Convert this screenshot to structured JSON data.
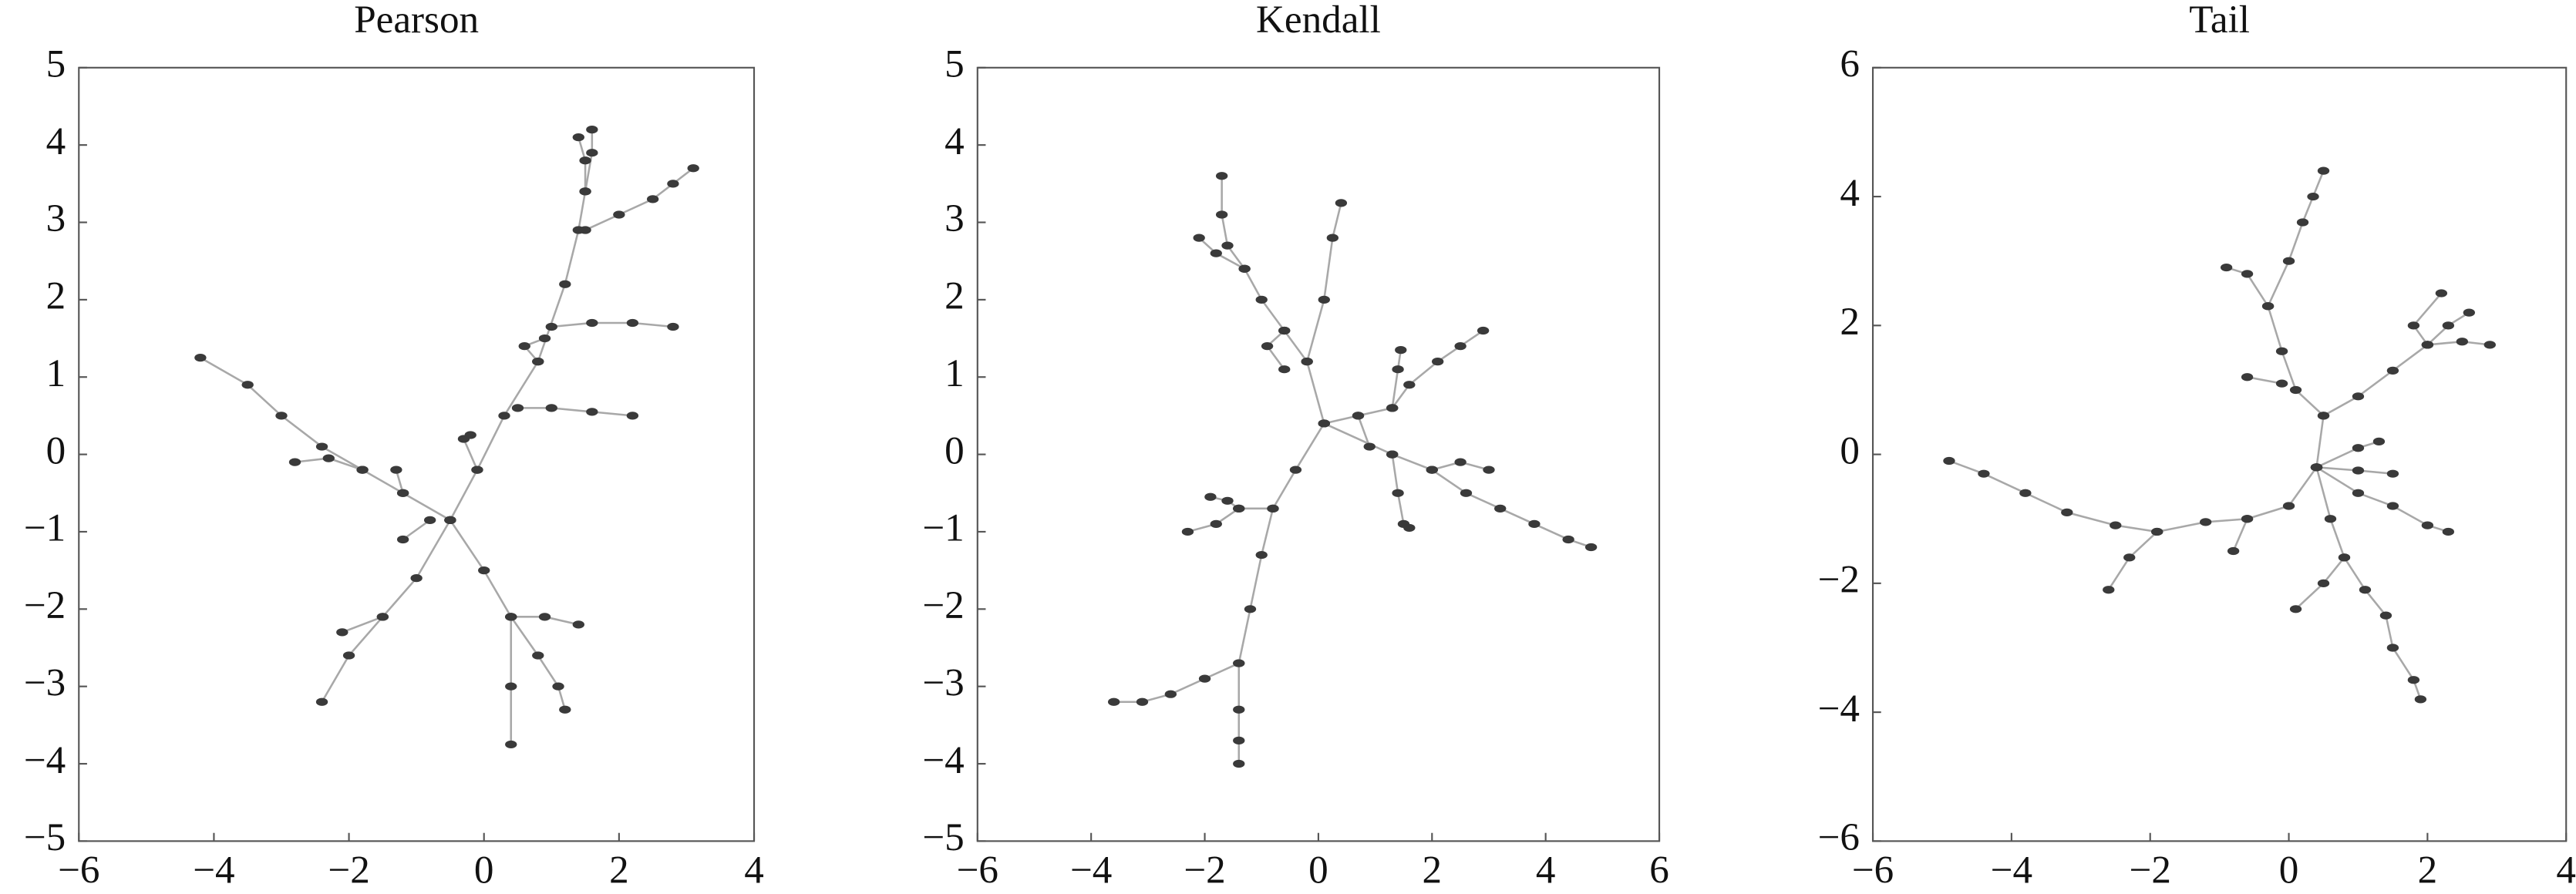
{
  "chart_data": [
    {
      "type": "tree",
      "title": "Pearson",
      "xlim": [
        -6,
        4
      ],
      "ylim": [
        -5,
        5
      ],
      "xticks": [
        {
          "value": -6,
          "label": "−6"
        },
        {
          "value": -4,
          "label": "−4"
        },
        {
          "value": -2,
          "label": "−2"
        },
        0,
        2,
        4
      ],
      "yticks": [
        {
          "value": -5,
          "label": "−5"
        },
        {
          "value": -4,
          "label": "−4"
        },
        {
          "value": -3,
          "label": "−3"
        },
        {
          "value": -2,
          "label": "−2"
        },
        {
          "value": -1,
          "label": "−1"
        },
        0,
        1,
        2,
        3,
        4,
        5
      ],
      "line_color": "#a8a8a8",
      "marker_color": "#3a3a3a",
      "series": [
        {
          "x": [
            -0.5,
            -0.1,
            0.3,
            0.8,
            1.2,
            1.4,
            1.5,
            1.5,
            1.4
          ],
          "values": [
            -0.85,
            -0.2,
            0.5,
            1.2,
            2.2,
            2.9,
            3.4,
            3.8,
            4.1
          ]
        },
        {
          "x": [
            1.5,
            2.0,
            2.5,
            2.8,
            3.1
          ],
          "values": [
            2.9,
            3.1,
            3.3,
            3.5,
            3.7
          ]
        },
        {
          "x": [
            1.5,
            1.6,
            1.6
          ],
          "values": [
            3.4,
            3.9,
            4.2
          ]
        },
        {
          "x": [
            1.0,
            1.6,
            2.2,
            2.8
          ],
          "values": [
            1.65,
            1.7,
            1.7,
            1.65
          ]
        },
        {
          "x": [
            0.5,
            1.0,
            1.6,
            2.2
          ],
          "values": [
            0.6,
            0.6,
            0.55,
            0.5
          ]
        },
        {
          "x": [
            0.8,
            0.6,
            0.9
          ],
          "values": [
            1.2,
            1.4,
            1.5
          ]
        },
        {
          "x": [
            -0.1,
            -0.3,
            -0.2
          ],
          "values": [
            -0.2,
            0.2,
            0.25
          ]
        },
        {
          "x": [
            -0.5,
            -1.2,
            -1.8,
            -2.4,
            -3.0,
            -3.5,
            -4.2
          ],
          "values": [
            -0.85,
            -0.5,
            -0.2,
            0.1,
            0.5,
            0.9,
            1.25
          ]
        },
        {
          "x": [
            -1.8,
            -2.3,
            -2.8
          ],
          "values": [
            -0.2,
            -0.05,
            -0.1
          ]
        },
        {
          "x": [
            -1.2,
            -1.3
          ],
          "values": [
            -0.5,
            -0.2
          ]
        },
        {
          "x": [
            -0.8,
            -1.2
          ],
          "values": [
            -0.85,
            -1.1
          ]
        },
        {
          "x": [
            -0.5,
            -1.0,
            -1.5,
            -2.0,
            -2.4
          ],
          "values": [
            -0.85,
            -1.6,
            -2.1,
            -2.6,
            -3.2
          ]
        },
        {
          "x": [
            -1.5,
            -2.1
          ],
          "values": [
            -2.1,
            -2.3
          ]
        },
        {
          "x": [
            -0.5,
            0.0,
            0.4,
            0.4,
            0.4
          ],
          "values": [
            -0.85,
            -1.5,
            -2.1,
            -3.0,
            -3.75
          ]
        },
        {
          "x": [
            0.4,
            0.9,
            1.4
          ],
          "values": [
            -2.1,
            -2.1,
            -2.2
          ]
        },
        {
          "x": [
            0.4,
            0.8,
            1.1,
            1.2
          ],
          "values": [
            -2.1,
            -2.6,
            -3.0,
            -3.3
          ]
        }
      ]
    },
    {
      "type": "tree",
      "title": "Kendall",
      "xlim": [
        -6,
        6
      ],
      "ylim": [
        -5,
        5
      ],
      "xticks": [
        {
          "value": -6,
          "label": "−6"
        },
        {
          "value": -4,
          "label": "−4"
        },
        {
          "value": -2,
          "label": "−2"
        },
        0,
        2,
        4,
        6
      ],
      "yticks": [
        {
          "value": -5,
          "label": "−5"
        },
        {
          "value": -4,
          "label": "−4"
        },
        {
          "value": -3,
          "label": "−3"
        },
        {
          "value": -2,
          "label": "−2"
        },
        {
          "value": -1,
          "label": "−1"
        },
        0,
        1,
        2,
        3,
        4,
        5
      ],
      "line_color": "#a8a8a8",
      "marker_color": "#3a3a3a",
      "series": [
        {
          "x": [
            0.1,
            -0.2,
            -0.6,
            -1.0,
            -1.3,
            -1.6,
            -1.7,
            -1.7
          ],
          "values": [
            0.4,
            1.2,
            1.6,
            2.0,
            2.4,
            2.7,
            3.1,
            3.6
          ]
        },
        {
          "x": [
            -1.3,
            -1.8,
            -2.1
          ],
          "values": [
            2.4,
            2.6,
            2.8
          ]
        },
        {
          "x": [
            -0.6,
            -0.9,
            -0.6
          ],
          "values": [
            1.6,
            1.4,
            1.1
          ]
        },
        {
          "x": [
            -0.2,
            0.1,
            0.25,
            0.4
          ],
          "values": [
            1.2,
            2.0,
            2.8,
            3.25
          ]
        },
        {
          "x": [
            0.1,
            0.7,
            1.3,
            1.6,
            2.1,
            2.5,
            2.9
          ],
          "values": [
            0.4,
            0.5,
            0.6,
            0.9,
            1.2,
            1.4,
            1.6
          ]
        },
        {
          "x": [
            1.3,
            1.4,
            1.45
          ],
          "values": [
            0.6,
            1.1,
            1.35
          ]
        },
        {
          "x": [
            0.1,
            1.3,
            2.0,
            2.6,
            3.2,
            3.8,
            4.4,
            4.8
          ],
          "values": [
            0.4,
            0.0,
            -0.2,
            -0.5,
            -0.7,
            -0.9,
            -1.1,
            -1.2
          ]
        },
        {
          "x": [
            2.0,
            2.5,
            3.0
          ],
          "values": [
            -0.2,
            -0.1,
            -0.2
          ]
        },
        {
          "x": [
            1.3,
            1.4,
            1.5,
            1.6
          ],
          "values": [
            0.0,
            -0.5,
            -0.9,
            -0.95
          ]
        },
        {
          "x": [
            0.7,
            0.9
          ],
          "values": [
            0.5,
            0.1
          ]
        },
        {
          "x": [
            0.1,
            -0.4,
            -0.8,
            -1.0,
            -1.2,
            -1.4,
            -1.4,
            -1.4,
            -1.4
          ],
          "values": [
            0.4,
            -0.2,
            -0.7,
            -1.3,
            -2.0,
            -2.7,
            -3.3,
            -3.7,
            -4.0
          ]
        },
        {
          "x": [
            -1.4,
            -2.0,
            -2.6,
            -3.1,
            -3.6
          ],
          "values": [
            -2.7,
            -2.9,
            -3.1,
            -3.2,
            -3.2
          ]
        },
        {
          "x": [
            -0.8,
            -1.4,
            -1.8,
            -2.3
          ],
          "values": [
            -0.7,
            -0.7,
            -0.9,
            -1.0
          ]
        },
        {
          "x": [
            -1.4,
            -1.6,
            -1.9
          ],
          "values": [
            -0.7,
            -0.6,
            -0.55
          ]
        }
      ]
    },
    {
      "type": "tree",
      "title": "Tail",
      "xlim": [
        -6,
        4
      ],
      "ylim": [
        -6,
        6
      ],
      "xticks": [
        {
          "value": -6,
          "label": "−6"
        },
        {
          "value": -4,
          "label": "−4"
        },
        {
          "value": -2,
          "label": "−2"
        },
        0,
        2,
        4
      ],
      "yticks": [
        {
          "value": -6,
          "label": "−6"
        },
        {
          "value": -4,
          "label": "−4"
        },
        {
          "value": -2,
          "label": "−2"
        },
        0,
        2,
        4,
        6
      ],
      "line_color": "#a8a8a8",
      "marker_color": "#3a3a3a",
      "series": [
        {
          "x": [
            0.4,
            0.5,
            0.1,
            -0.1,
            -0.3,
            -0.6,
            -0.9
          ],
          "values": [
            -0.2,
            0.6,
            1.0,
            1.6,
            2.3,
            2.8,
            2.9
          ]
        },
        {
          "x": [
            -0.3,
            0.0,
            0.2,
            0.35,
            0.5
          ],
          "values": [
            2.3,
            3.0,
            3.6,
            4.0,
            4.4
          ]
        },
        {
          "x": [
            -0.1,
            -0.6
          ],
          "values": [
            1.1,
            1.2
          ]
        },
        {
          "x": [
            0.5,
            1.0,
            1.5,
            2.0,
            2.5,
            2.9
          ],
          "values": [
            0.6,
            0.9,
            1.3,
            1.7,
            1.75,
            1.7
          ]
        },
        {
          "x": [
            2.0,
            2.3,
            2.6
          ],
          "values": [
            1.7,
            2.0,
            2.2
          ]
        },
        {
          "x": [
            2.0,
            1.8,
            2.2
          ],
          "values": [
            1.7,
            2.0,
            2.5
          ]
        },
        {
          "x": [
            0.4,
            1.0,
            1.5
          ],
          "values": [
            -0.2,
            -0.25,
            -0.3
          ]
        },
        {
          "x": [
            0.4,
            1.0,
            1.5,
            2.0,
            2.3
          ],
          "values": [
            -0.2,
            -0.6,
            -0.8,
            -1.1,
            -1.2
          ]
        },
        {
          "x": [
            0.4,
            1.0,
            1.3
          ],
          "values": [
            -0.2,
            0.1,
            0.2
          ]
        },
        {
          "x": [
            0.4,
            0.6,
            0.8,
            1.1,
            1.4,
            1.5,
            1.8,
            1.9
          ],
          "values": [
            -0.2,
            -1.0,
            -1.6,
            -2.1,
            -2.5,
            -3.0,
            -3.5,
            -3.8
          ]
        },
        {
          "x": [
            0.8,
            0.5,
            0.1
          ],
          "values": [
            -1.6,
            -2.0,
            -2.4
          ]
        },
        {
          "x": [
            0.4,
            0.0,
            -0.6,
            -1.2,
            -1.9,
            -2.5,
            -3.2,
            -3.8,
            -4.4,
            -4.9
          ],
          "values": [
            -0.2,
            -0.8,
            -1.0,
            -1.05,
            -1.2,
            -1.1,
            -0.9,
            -0.6,
            -0.3,
            -0.1
          ]
        },
        {
          "x": [
            -1.9,
            -2.3,
            -2.6
          ],
          "values": [
            -1.2,
            -1.6,
            -2.1
          ]
        },
        {
          "x": [
            -0.6,
            -0.8
          ],
          "values": [
            -1.0,
            -1.5
          ]
        }
      ]
    }
  ]
}
